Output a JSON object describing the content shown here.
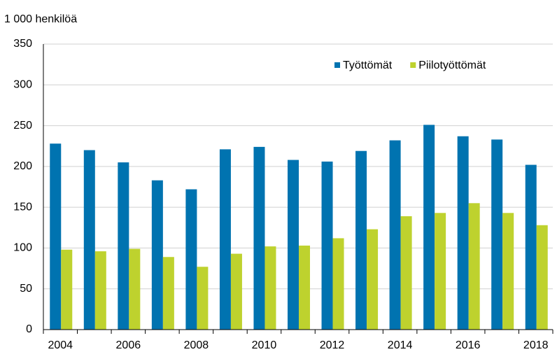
{
  "chart_data": {
    "type": "bar",
    "unit_label": "1 000 henkilöä",
    "categories": [
      "2004",
      null,
      "2006",
      null,
      "2008",
      null,
      "2010",
      null,
      "2012",
      null,
      "2014",
      null,
      "2016",
      null,
      "2018"
    ],
    "series": [
      {
        "name": "Työttömät",
        "color": "#0073b0",
        "values": [
          228,
          220,
          205,
          183,
          172,
          221,
          224,
          208,
          206,
          219,
          232,
          251,
          237,
          233,
          202
        ]
      },
      {
        "name": "Piilotyöttömät",
        "color": "#bed22e",
        "values": [
          98,
          96,
          99,
          89,
          77,
          93,
          102,
          103,
          112,
          123,
          139,
          143,
          155,
          143,
          128
        ]
      }
    ],
    "ylim": [
      0,
      350
    ],
    "yticks": [
      0,
      50,
      100,
      150,
      200,
      250,
      300,
      350
    ],
    "grid": true,
    "legend": "top-right"
  }
}
